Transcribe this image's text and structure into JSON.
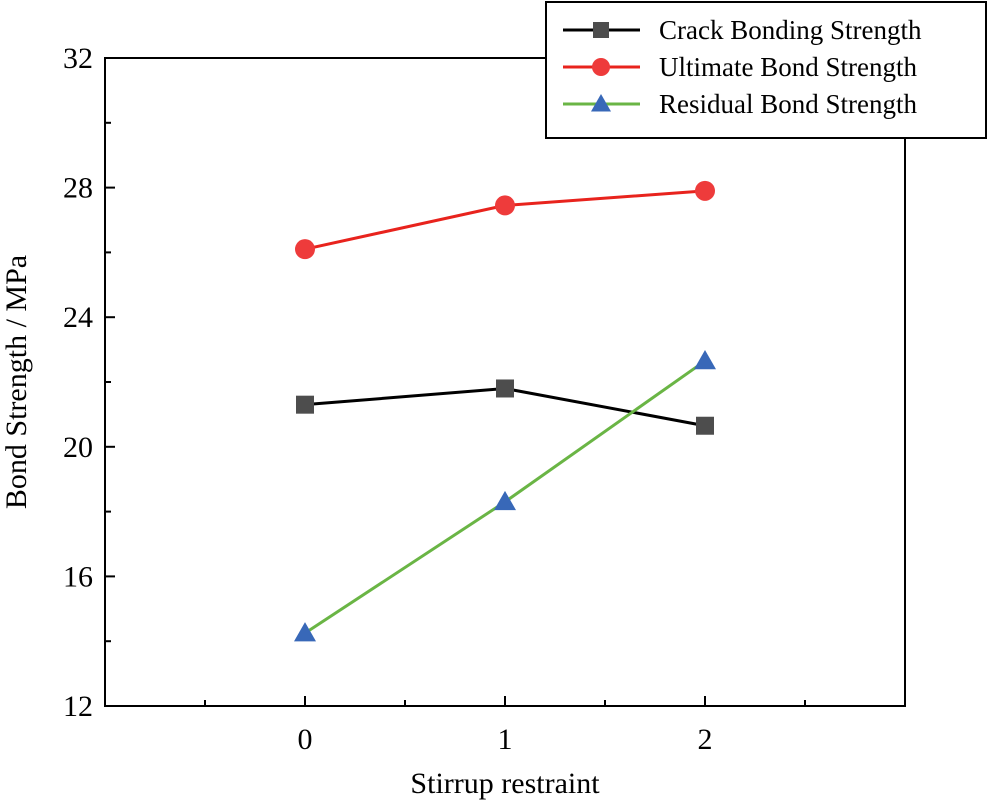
{
  "chart_data": {
    "type": "line",
    "title": "",
    "xlabel": "Stirrup restraint",
    "ylabel": "Bond Strength / MPa",
    "x": [
      0,
      1,
      2
    ],
    "x_tick_labels": [
      "0",
      "1",
      "2"
    ],
    "xlim": [
      -1,
      3
    ],
    "ylim": [
      12,
      32
    ],
    "y_ticks": [
      12,
      16,
      20,
      24,
      28,
      32
    ],
    "y_tick_labels": [
      "12",
      "16",
      "20",
      "24",
      "28",
      "32"
    ],
    "grid": false,
    "legend_position": "top-right",
    "series": [
      {
        "name": "Crack Bonding Strength",
        "values": [
          21.3,
          21.8,
          20.65
        ],
        "marker": "square",
        "line_color": "#000000",
        "marker_color": "#4d4d4d"
      },
      {
        "name": "Ultimate Bond Strength",
        "values": [
          26.1,
          27.45,
          27.9
        ],
        "marker": "circle",
        "line_color": "#e8231d",
        "marker_color": "#ee3b3b"
      },
      {
        "name": "Residual Bond Strength",
        "values": [
          14.25,
          18.3,
          22.65
        ],
        "marker": "triangle",
        "line_color": "#6ab545",
        "marker_color": "#3868b8"
      }
    ]
  }
}
